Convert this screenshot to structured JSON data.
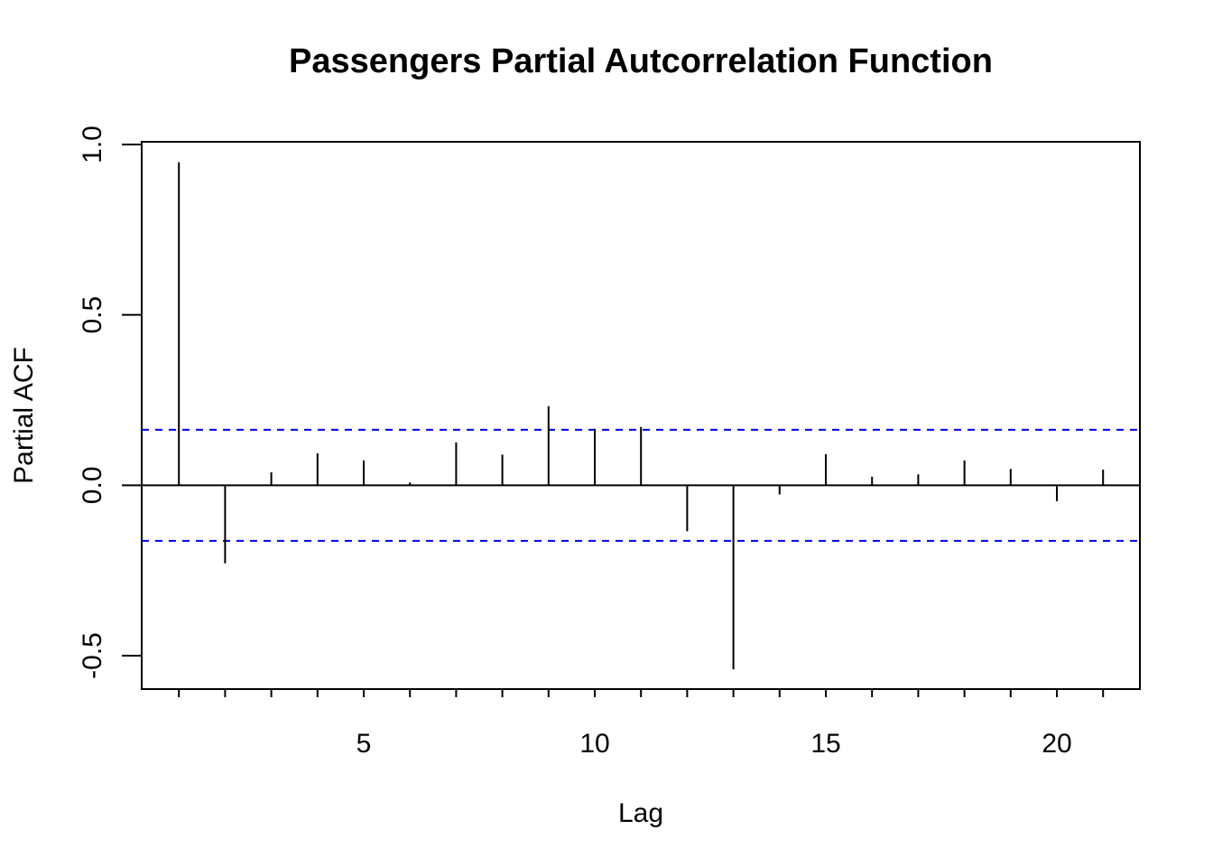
{
  "chart_data": {
    "type": "bar",
    "title": "Passengers Partial Autcorrelation Function",
    "xlabel": "Lag",
    "ylabel": "Partial ACF",
    "x": [
      1,
      2,
      3,
      4,
      5,
      6,
      7,
      8,
      9,
      10,
      11,
      12,
      13,
      14,
      15,
      16,
      17,
      18,
      19,
      20,
      21
    ],
    "values": [
      0.948,
      -0.229,
      0.038,
      0.094,
      0.073,
      0.008,
      0.126,
      0.09,
      0.232,
      0.166,
      0.171,
      -0.135,
      -0.54,
      -0.027,
      0.091,
      0.025,
      0.032,
      0.073,
      0.048,
      -0.047,
      0.046
    ],
    "xlim": [
      0.2,
      21.8
    ],
    "ylim": [
      -0.6,
      1.0
    ],
    "xticks": [
      "5",
      "10",
      "15",
      "20"
    ],
    "xtick_values": [
      5,
      10,
      15,
      20
    ],
    "xminor_ticks": [
      1,
      2,
      3,
      4,
      5,
      6,
      7,
      8,
      9,
      10,
      11,
      12,
      13,
      14,
      15,
      16,
      17,
      18,
      19,
      20,
      21
    ],
    "yticks": [
      "-0.5",
      "0.0",
      "0.5",
      "1.0"
    ],
    "ytick_values": [
      -0.5,
      0.0,
      0.5,
      1.0
    ],
    "confidence_bounds": [
      0.163,
      -0.163
    ],
    "zero_line": 0,
    "grid": false,
    "colors": {
      "bars": "#000000",
      "confidence": "#0000ee",
      "axis": "#000000"
    }
  }
}
